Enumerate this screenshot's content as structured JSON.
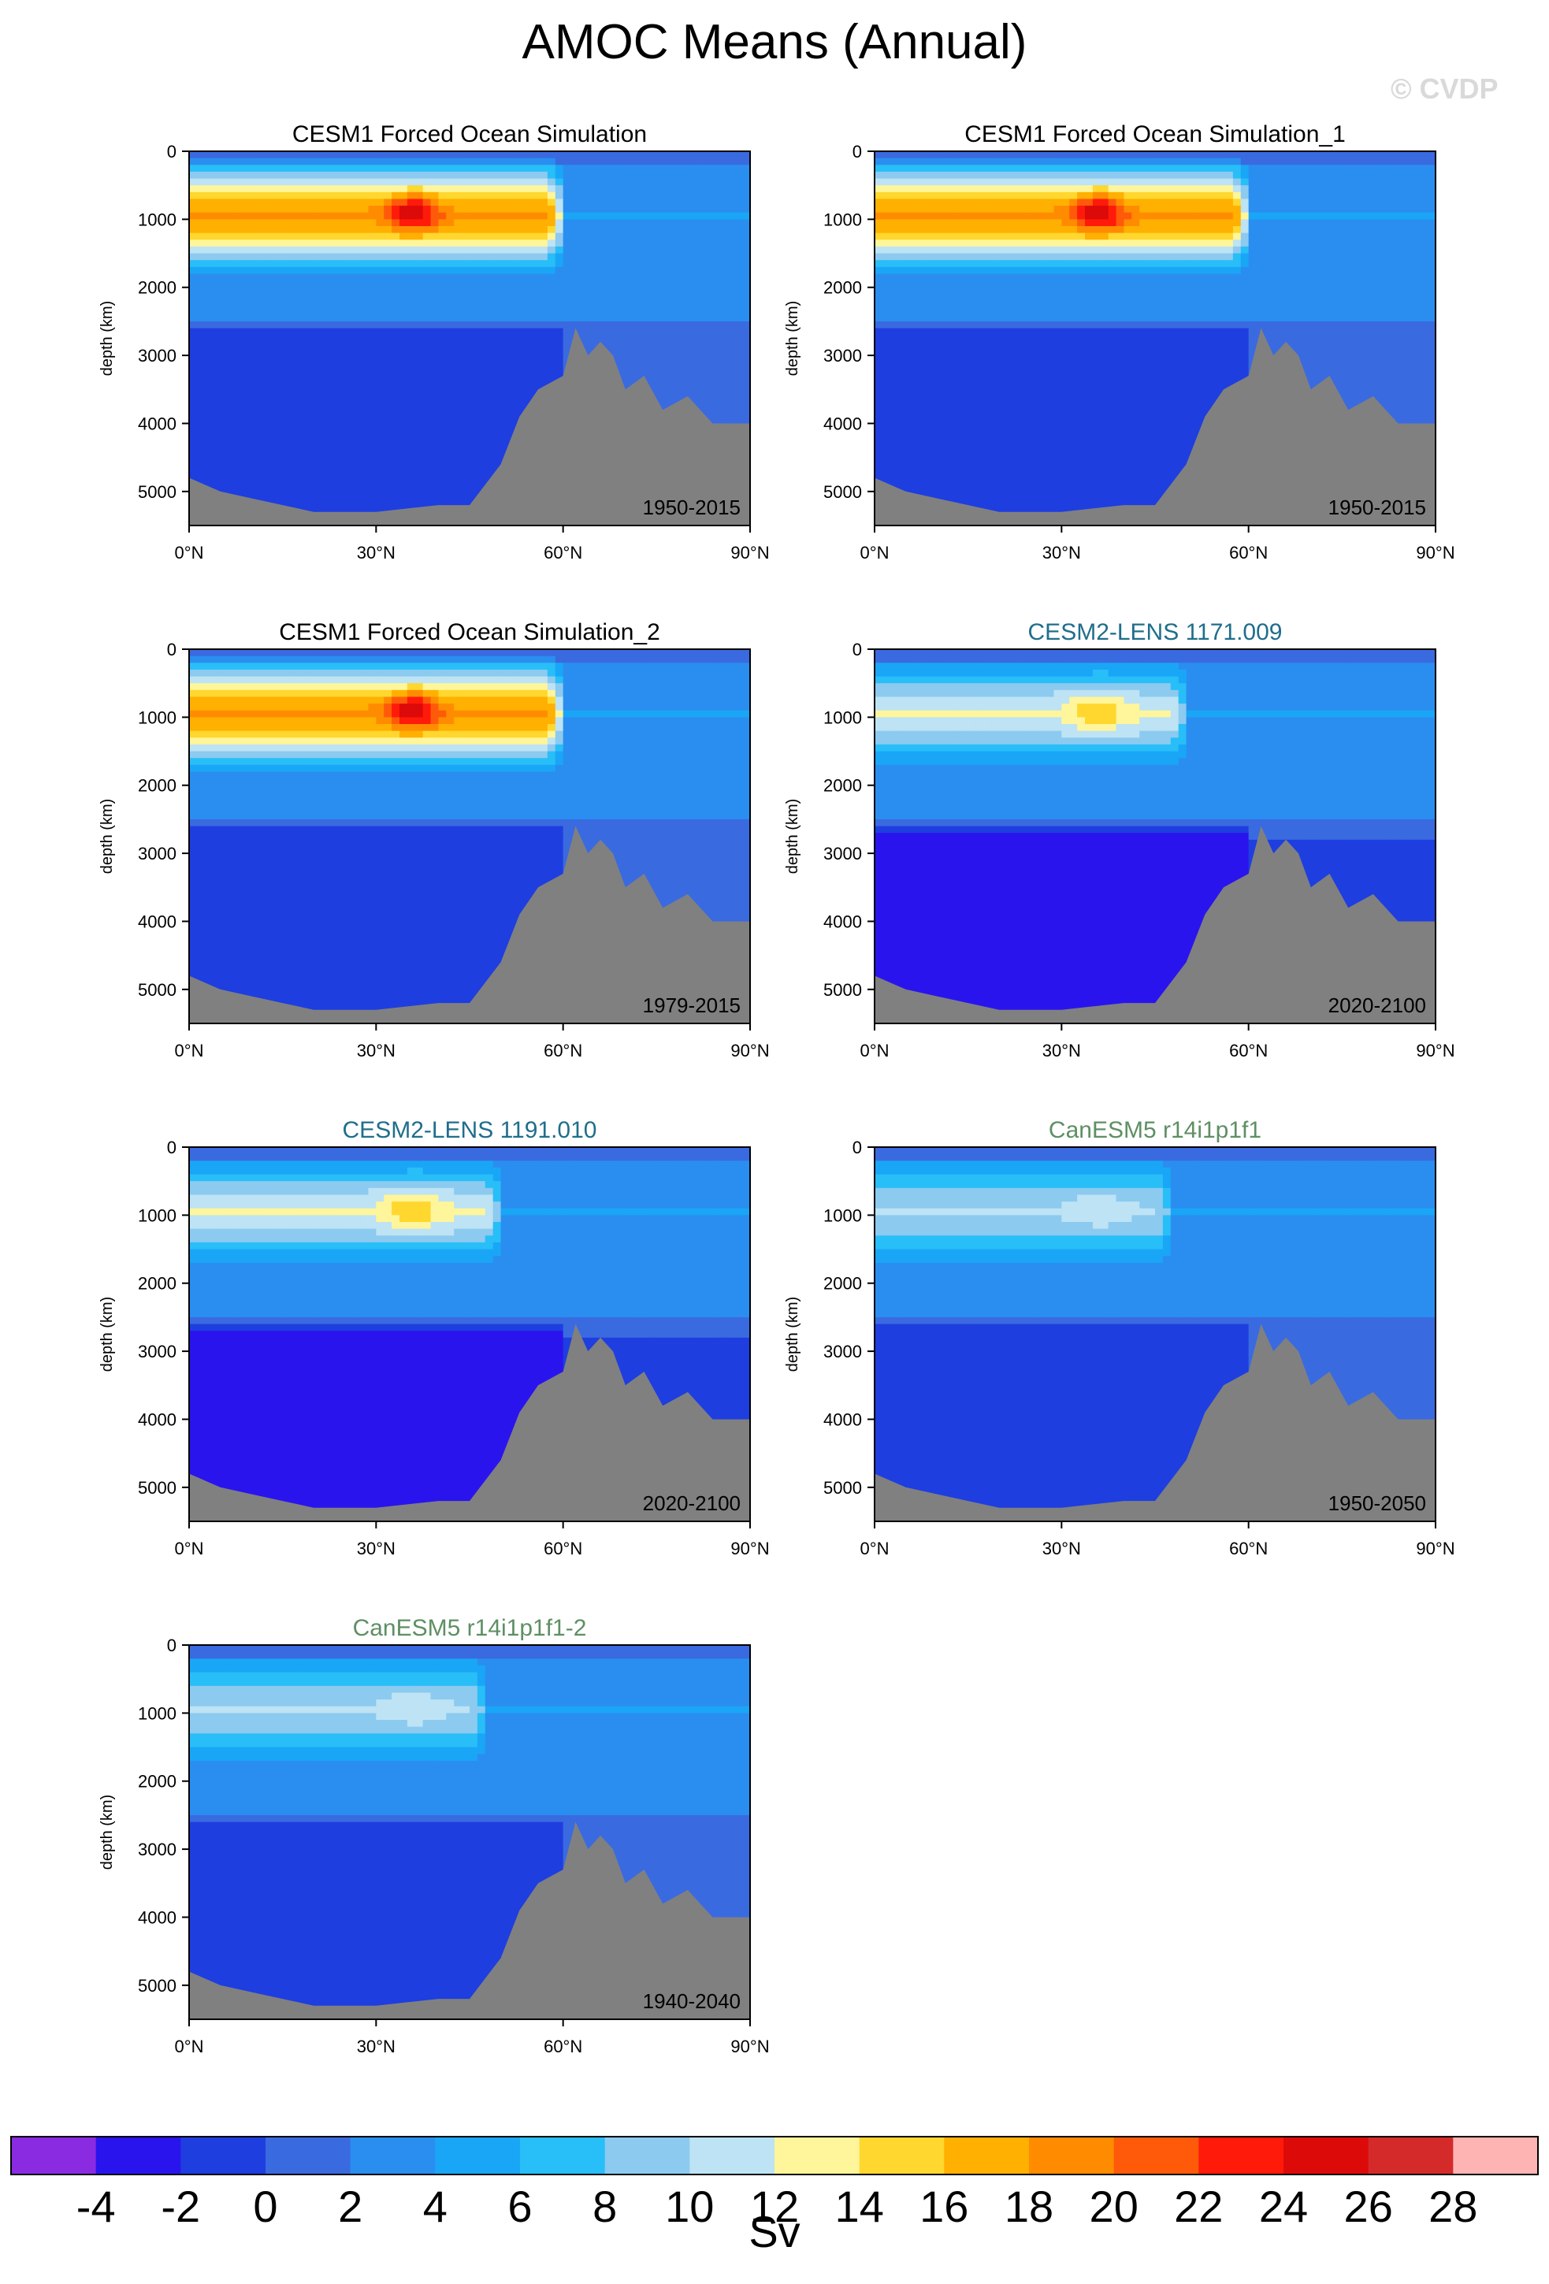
{
  "title": "AMOC Means (Annual)",
  "watermark": "© CVDP",
  "colors": {
    "title_default": "#000000",
    "title_cesm2": "#1f6e8c",
    "title_canesm": "#5e8f63",
    "land": "#808080"
  },
  "chart_data": [
    {
      "type": "heatmap",
      "title": "CESM1 Forced Ocean Simulation",
      "period": "1950-2015",
      "ylabel": "depth (km)",
      "x_ticks": [
        "0°N",
        "30°N",
        "60°N",
        "90°N"
      ],
      "y_ticks": [
        0,
        1000,
        2000,
        3000,
        4000,
        5000
      ],
      "xlim": [
        0,
        90
      ],
      "ylim": [
        5500,
        0
      ],
      "peak_sv": 26,
      "upper_cell_sv": 18,
      "upper_cell_lat_extent": 57,
      "lower_cell_sv": -2
    },
    {
      "type": "heatmap",
      "title": "CESM1 Forced Ocean Simulation_1",
      "period": "1950-2015",
      "ylabel": "depth (km)",
      "x_ticks": [
        "0°N",
        "30°N",
        "60°N",
        "90°N"
      ],
      "y_ticks": [
        0,
        1000,
        2000,
        3000,
        4000,
        5000
      ],
      "xlim": [
        0,
        90
      ],
      "ylim": [
        5500,
        0
      ],
      "peak_sv": 26,
      "upper_cell_sv": 18,
      "upper_cell_lat_extent": 57,
      "lower_cell_sv": -2
    },
    {
      "type": "heatmap",
      "title": "CESM1 Forced Ocean Simulation_2",
      "period": "1979-2015",
      "ylabel": "depth (km)",
      "x_ticks": [
        "0°N",
        "30°N",
        "60°N",
        "90°N"
      ],
      "y_ticks": [
        0,
        1000,
        2000,
        3000,
        4000,
        5000
      ],
      "xlim": [
        0,
        90
      ],
      "ylim": [
        5500,
        0
      ],
      "peak_sv": 26,
      "upper_cell_sv": 18,
      "upper_cell_lat_extent": 57,
      "lower_cell_sv": -2
    },
    {
      "type": "heatmap",
      "title": "CESM2-LENS 1171.009",
      "period": "2020-2100",
      "ylabel": "depth (km)",
      "x_ticks": [
        "0°N",
        "30°N",
        "60°N",
        "90°N"
      ],
      "y_ticks": [
        0,
        1000,
        2000,
        3000,
        4000,
        5000
      ],
      "xlim": [
        0,
        90
      ],
      "ylim": [
        5500,
        0
      ],
      "peak_sv": 16,
      "upper_cell_sv": 12,
      "upper_cell_lat_extent": 47,
      "lower_cell_sv": -4
    },
    {
      "type": "heatmap",
      "title": "CESM2-LENS 1191.010",
      "period": "2020-2100",
      "ylabel": "depth (km)",
      "x_ticks": [
        "0°N",
        "30°N",
        "60°N",
        "90°N"
      ],
      "y_ticks": [
        0,
        1000,
        2000,
        3000,
        4000,
        5000
      ],
      "xlim": [
        0,
        90
      ],
      "ylim": [
        5500,
        0
      ],
      "peak_sv": 16,
      "upper_cell_sv": 12,
      "upper_cell_lat_extent": 47,
      "lower_cell_sv": -4
    },
    {
      "type": "heatmap",
      "title": "CanESM5 r14i1p1f1",
      "period": "1950-2050",
      "ylabel": "depth (km)",
      "x_ticks": [
        "0°N",
        "30°N",
        "60°N",
        "90°N"
      ],
      "y_ticks": [
        0,
        1000,
        2000,
        3000,
        4000,
        5000
      ],
      "xlim": [
        0,
        90
      ],
      "ylim": [
        5500,
        0
      ],
      "peak_sv": 12,
      "upper_cell_sv": 10,
      "upper_cell_lat_extent": 45,
      "lower_cell_sv": -2
    },
    {
      "type": "heatmap",
      "title": "CanESM5 r14i1p1f1-2",
      "period": "1940-2040",
      "ylabel": "depth (km)",
      "x_ticks": [
        "0°N",
        "30°N",
        "60°N",
        "90°N"
      ],
      "y_ticks": [
        0,
        1000,
        2000,
        3000,
        4000,
        5000
      ],
      "xlim": [
        0,
        90
      ],
      "ylim": [
        5500,
        0
      ],
      "peak_sv": 12,
      "upper_cell_sv": 10,
      "upper_cell_lat_extent": 45,
      "lower_cell_sv": -2
    }
  ],
  "colorbar": {
    "unit": "Sv",
    "tick_labels": [
      "-4",
      "-2",
      "0",
      "2",
      "4",
      "6",
      "8",
      "10",
      "12",
      "14",
      "16",
      "18",
      "20",
      "22",
      "24",
      "26",
      "28"
    ],
    "colors": [
      "#8a2be2",
      "#2a14ee",
      "#1e3ee0",
      "#3a6ae0",
      "#2a8ef0",
      "#1aa6f6",
      "#28bef8",
      "#8ccaf0",
      "#bde3f4",
      "#fff59a",
      "#ffd72e",
      "#ffb000",
      "#ff8c00",
      "#ff5a0a",
      "#ff1a0a",
      "#dd0a0a",
      "#d42a2a",
      "#ffb4b4"
    ]
  }
}
